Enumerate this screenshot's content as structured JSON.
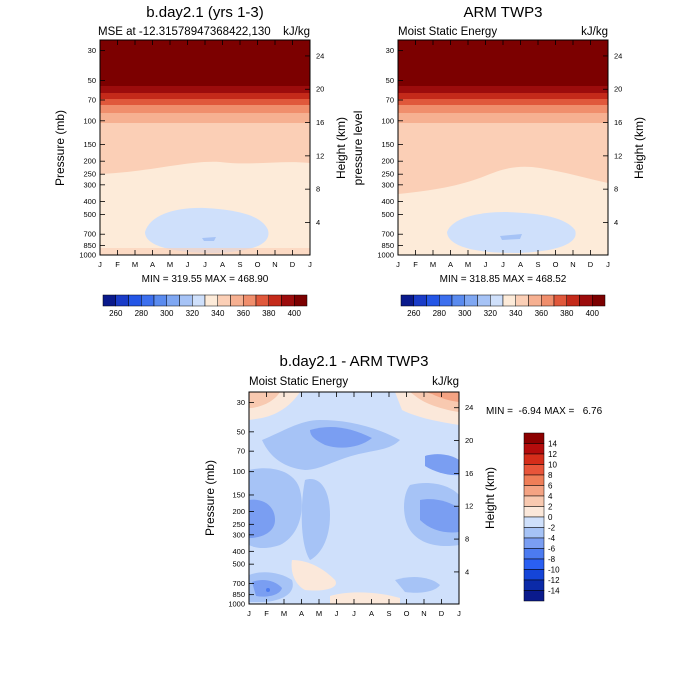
{
  "chart_data": [
    {
      "type": "heatmap",
      "title": "b.day2.1 (yrs 1-3)",
      "subtitle_left": "MSE at -12.31578947368422,130",
      "subtitle_right": "kJ/kg",
      "ylabel_left": "Pressure (mb)",
      "ylabel_right": "Height (km)",
      "x_ticks": [
        "J",
        "F",
        "M",
        "A",
        "M",
        "J",
        "J",
        "A",
        "S",
        "O",
        "N",
        "D",
        "J"
      ],
      "y_ticks_left": [
        "30",
        "50",
        "70",
        "100",
        "150",
        "200",
        "250",
        "300",
        "400",
        "500",
        "700",
        "850",
        "1000"
      ],
      "y_ticks_right": [
        "24",
        "20",
        "16",
        "12",
        "8",
        "4"
      ],
      "stats": "MIN = 319.55 MAX = 468.90",
      "colorbar_labels": [
        "260",
        "280",
        "300",
        "320",
        "340",
        "360",
        "380",
        "400"
      ],
      "contour_levels": [
        260,
        270,
        280,
        290,
        300,
        310,
        320,
        330,
        340,
        350,
        360,
        370,
        380,
        390,
        400
      ],
      "ylim_mb": [
        1000,
        25
      ]
    },
    {
      "type": "heatmap",
      "title": "ARM TWP3",
      "subtitle_left": "Moist Static Energy",
      "subtitle_right": "kJ/kg",
      "ylabel_left": "pressure level",
      "ylabel_right": "Height (km)",
      "x_ticks": [
        "J",
        "F",
        "M",
        "A",
        "M",
        "J",
        "J",
        "A",
        "S",
        "O",
        "N",
        "D",
        "J"
      ],
      "y_ticks_left": [
        "30",
        "50",
        "70",
        "100",
        "150",
        "200",
        "250",
        "300",
        "400",
        "500",
        "700",
        "850",
        "1000"
      ],
      "y_ticks_right": [
        "24",
        "20",
        "16",
        "12",
        "8",
        "4"
      ],
      "stats": "MIN = 318.85 MAX = 468.52",
      "colorbar_labels": [
        "260",
        "280",
        "300",
        "320",
        "340",
        "360",
        "380",
        "400"
      ],
      "contour_levels": [
        260,
        270,
        280,
        290,
        300,
        310,
        320,
        330,
        340,
        350,
        360,
        370,
        380,
        390,
        400
      ],
      "ylim_mb": [
        1000,
        25
      ]
    },
    {
      "type": "heatmap",
      "title": "b.day2.1 - ARM TWP3",
      "subtitle_left": "Moist Static Energy",
      "subtitle_right": "kJ/kg",
      "ylabel_left": "Pressure (mb)",
      "ylabel_right": "Height (km)",
      "x_ticks": [
        "J",
        "F",
        "M",
        "A",
        "M",
        "J",
        "J",
        "A",
        "S",
        "O",
        "N",
        "D",
        "J"
      ],
      "y_ticks_left": [
        "30",
        "50",
        "70",
        "100",
        "150",
        "200",
        "250",
        "300",
        "400",
        "500",
        "700",
        "850",
        "1000"
      ],
      "y_ticks_right": [
        "24",
        "20",
        "16",
        "12",
        "8",
        "4"
      ],
      "stats": "MIN =  -6.94 MAX =   6.76",
      "colorbar_labels": [
        "14",
        "12",
        "10",
        "8",
        "6",
        "4",
        "2",
        "0",
        "-2",
        "-4",
        "-6",
        "-8",
        "-10",
        "-12",
        "-14"
      ],
      "contour_levels": [
        -14,
        -12,
        -10,
        -8,
        -6,
        -4,
        -2,
        0,
        2,
        4,
        6,
        8,
        10,
        12,
        14
      ],
      "ylim_mb": [
        1000,
        25
      ]
    }
  ],
  "colors": {
    "mse_scale": [
      "#0a1a8c",
      "#1a3cc8",
      "#2456e6",
      "#3c6fee",
      "#5a8bef",
      "#7fa7f2",
      "#a6c3f6",
      "#cfe0fb",
      "#fdebd9",
      "#fbcfb6",
      "#f6b091",
      "#f08e6c",
      "#e0583b",
      "#c42a1a",
      "#9c0c0c",
      "#7c0000"
    ],
    "diff_scale": [
      "#0a1a8c",
      "#0b2aa8",
      "#1545d8",
      "#2a5ff2",
      "#4c7bf0",
      "#7a9ef2",
      "#a6c3f6",
      "#cfe0fb",
      "#fbe8da",
      "#f8c9b0",
      "#f4a383",
      "#ef7e58",
      "#e8553a",
      "#d52d1a",
      "#b40c0c",
      "#8c0000"
    ]
  }
}
